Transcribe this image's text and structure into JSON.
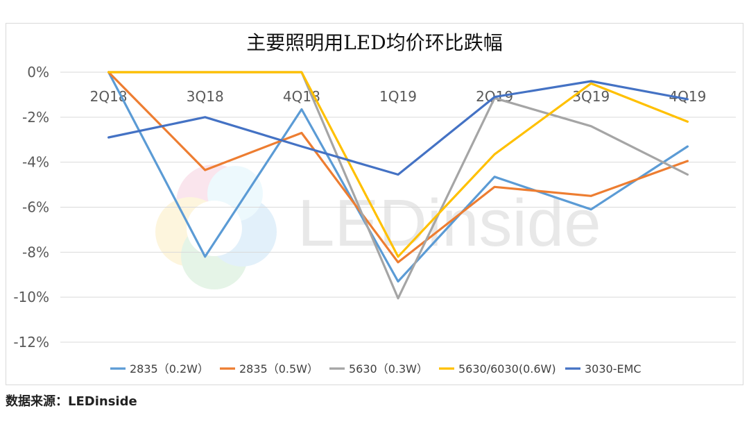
{
  "source_note": "数据来源：LEDinside",
  "watermark": "LEDinside",
  "chart_data": {
    "type": "line",
    "title": "主要照明用LED均价环比跌幅",
    "categories": [
      "2Q18",
      "3Q18",
      "4Q18",
      "1Q19",
      "2Q19",
      "3Q19",
      "4Q19"
    ],
    "ylim": [
      -12,
      0
    ],
    "yticks": [
      0,
      -2,
      -4,
      -6,
      -8,
      -10,
      -12
    ],
    "ytick_labels": [
      "0%",
      "-2%",
      "-4%",
      "-6%",
      "-8%",
      "-10%",
      "-12%"
    ],
    "grid": true,
    "legend": "bottom",
    "series": [
      {
        "name": "2835（0.2W）",
        "color": "#5b9bd5",
        "values": [
          0,
          -8.2,
          -1.65,
          -9.3,
          -4.65,
          -6.1,
          -3.3
        ]
      },
      {
        "name": "2835（0.5W）",
        "color": "#ed7d31",
        "values": [
          0,
          -4.35,
          -2.7,
          -8.45,
          -5.1,
          -5.5,
          -3.95
        ]
      },
      {
        "name": "5630（0.3W）",
        "color": "#a5a5a5",
        "values": [
          0,
          0,
          0,
          -10.05,
          -1.15,
          -2.4,
          -4.55
        ]
      },
      {
        "name": "5630/6030(0.6W)",
        "color": "#ffc000",
        "values": [
          0,
          0,
          0,
          -8.2,
          -3.65,
          -0.5,
          -2.2
        ]
      },
      {
        "name": "3030-EMC",
        "color": "#4472c4",
        "values": [
          -2.9,
          -2.0,
          -3.3,
          -4.55,
          -1.1,
          -0.4,
          -1.2
        ]
      }
    ]
  }
}
